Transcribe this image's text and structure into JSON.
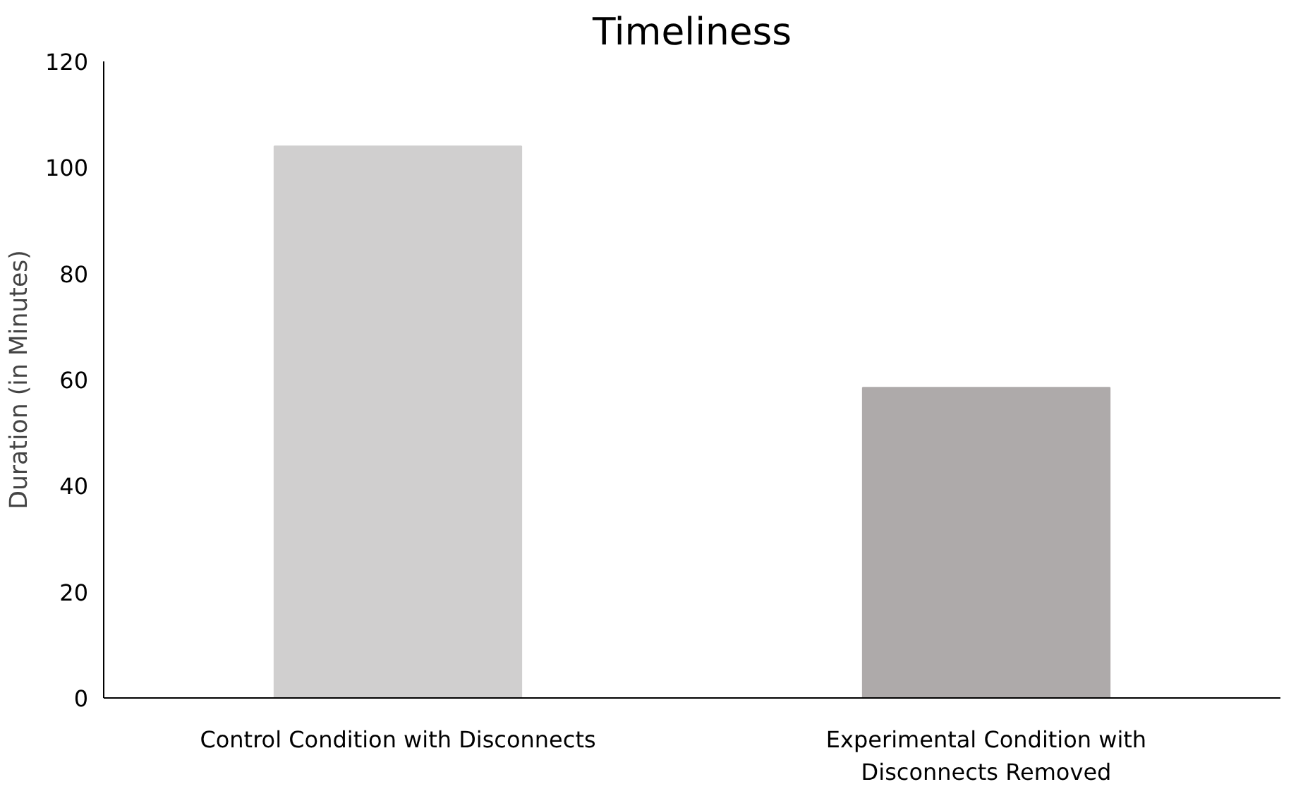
{
  "chart_data": {
    "type": "bar",
    "title": "Timeliness",
    "ylabel": "Duration (in Minutes)",
    "categories": [
      "Control Condition with Disconnects",
      "Experimental Condition with Disconnects Removed"
    ],
    "values": [
      104,
      58.5
    ],
    "colors": [
      "#d0cfcf",
      "#aeaaaa"
    ],
    "ylim": [
      0,
      120
    ],
    "yticks": [
      0,
      20,
      40,
      60,
      80,
      100,
      120
    ],
    "grid": false
  }
}
